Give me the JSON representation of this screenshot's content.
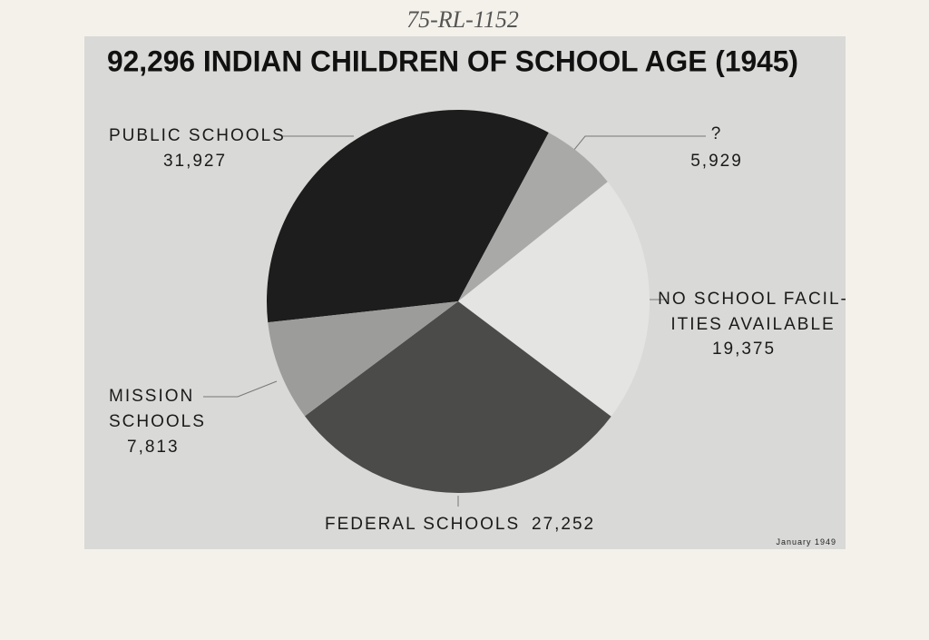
{
  "chart_data": {
    "type": "pie",
    "title": "92,296 INDIAN CHILDREN OF SCHOOL AGE (1945)",
    "annotations": [
      "75-RL-1152",
      "January 1949"
    ],
    "categories": [
      "PUBLIC SCHOOLS",
      "?",
      "NO SCHOOL FACIL-\nITIES AVAILABLE",
      "FEDERAL SCHOOLS",
      "MISSION\nSCHOOLS"
    ],
    "values": [
      31927,
      5929,
      19375,
      27252,
      7813
    ],
    "value_labels": [
      "31,927",
      "5,929",
      "19,375",
      "27,252",
      "7,813"
    ],
    "colors": [
      "#1d1d1d",
      "#a9a9a7",
      "#e4e4e2",
      "#4b4b4a",
      "#9c9c9a"
    ]
  }
}
